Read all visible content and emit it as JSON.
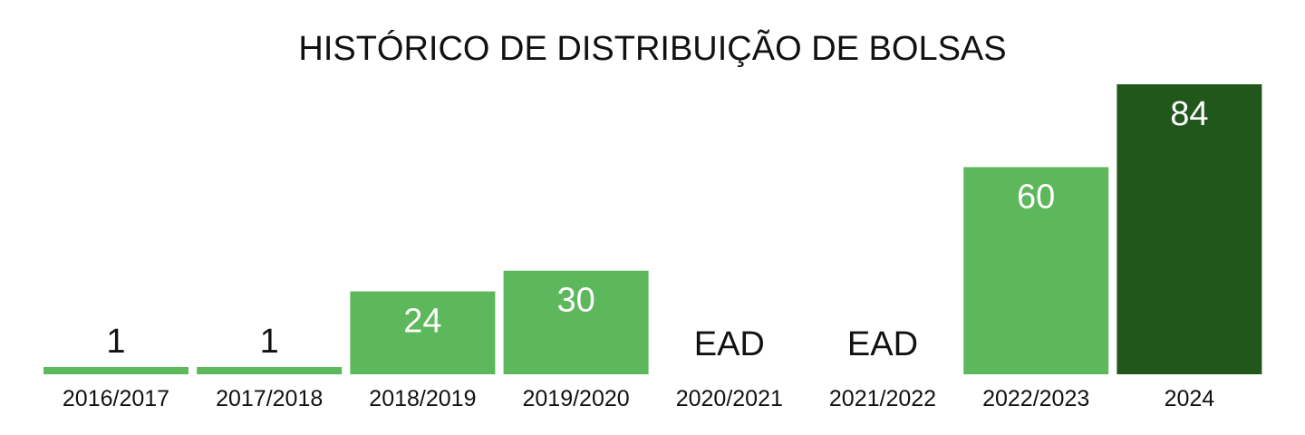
{
  "colors": {
    "background": "#ffffff",
    "bar_light_green": "#5cb85a",
    "bar_dark_green": "#22571c",
    "text_dark": "#111111",
    "text_light": "#ffffff"
  },
  "chart_data": {
    "type": "bar",
    "title": "HISTÓRICO DE DISTRIBUIÇÃO DE BOLSAS",
    "xlabel": "",
    "ylabel": "",
    "ylim": [
      0,
      84
    ],
    "grid": false,
    "legend": "none",
    "categories": [
      "2016/2017",
      "2017/2018",
      "2018/2019",
      "2019/2020",
      "2020/2021",
      "2021/2022",
      "2022/2023",
      "2024"
    ],
    "values": [
      1,
      1,
      24,
      30,
      null,
      null,
      60,
      84
    ],
    "data_labels": [
      "1",
      "1",
      "24",
      "30",
      "EAD",
      "EAD",
      "60",
      "84"
    ],
    "bar_colors": [
      "#5cb85a",
      "#5cb85a",
      "#5cb85a",
      "#5cb85a",
      "#5cb85a",
      "#5cb85a",
      "#5cb85a",
      "#22571c"
    ]
  }
}
